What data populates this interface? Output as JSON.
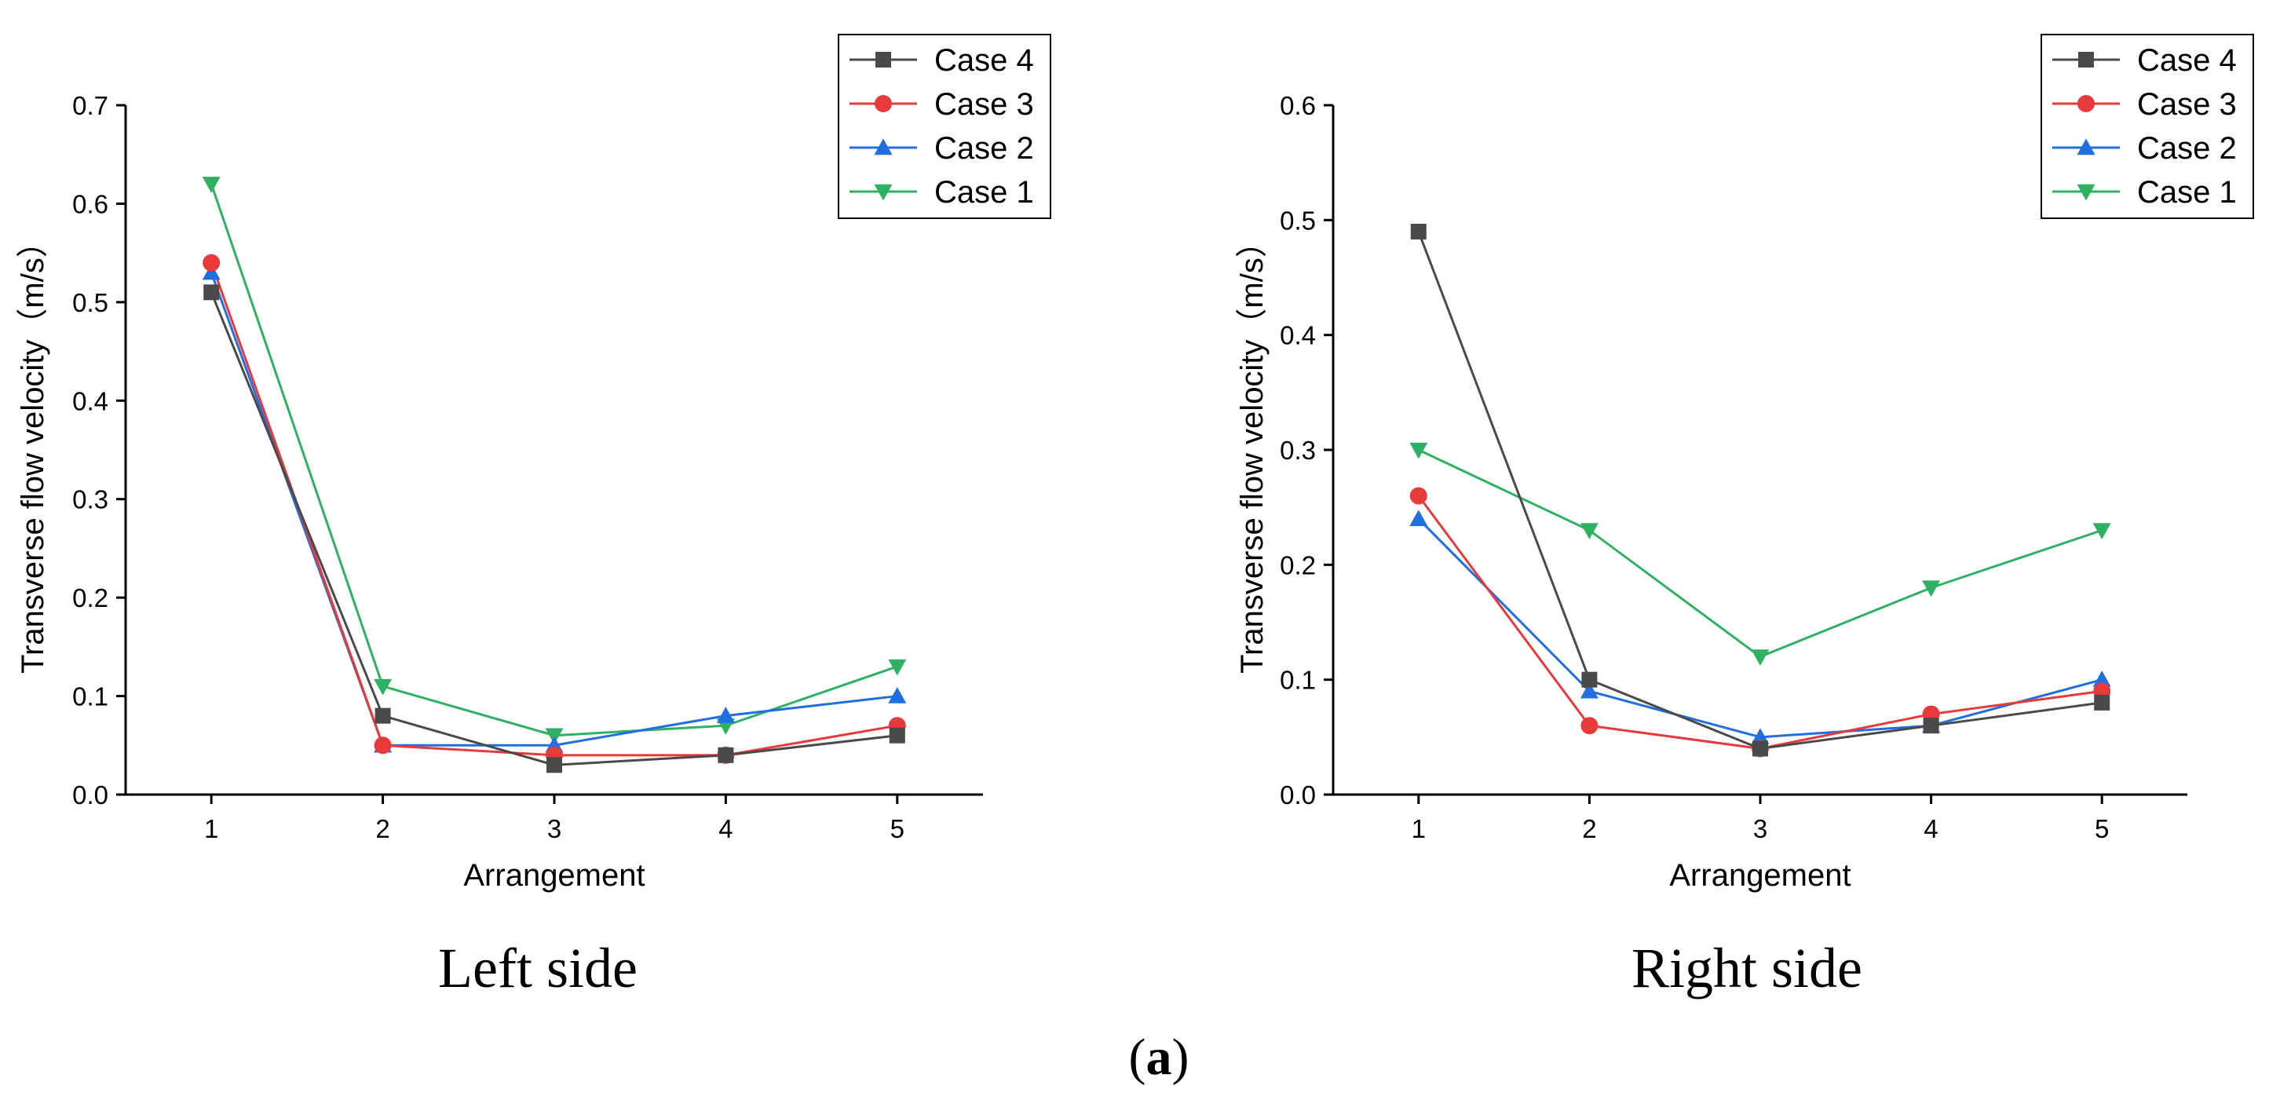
{
  "chart_data": [
    {
      "type": "line",
      "caption": "Left side",
      "xlabel": "Arrangement",
      "ylabel": "Transverse flow velocity（m/s）",
      "x": [
        1,
        2,
        3,
        4,
        5
      ],
      "xlim": [
        0.5,
        5.5
      ],
      "ylim": [
        0,
        0.7
      ],
      "yticks": [
        0.0,
        0.1,
        0.2,
        0.3,
        0.4,
        0.5,
        0.6,
        0.7
      ],
      "ytick_labels": [
        "0.0",
        "0.1",
        "0.2",
        "0.3",
        "0.4",
        "0.5",
        "0.6",
        "0.7"
      ],
      "xtick_labels": [
        "1",
        "2",
        "3",
        "4",
        "5"
      ],
      "legend_position": "top-right",
      "series": [
        {
          "name": "Case 4",
          "color": "#4a4a4a",
          "marker": "square",
          "values": [
            0.51,
            0.08,
            0.03,
            0.04,
            0.06
          ]
        },
        {
          "name": "Case 3",
          "color": "#e8393b",
          "marker": "circle",
          "values": [
            0.54,
            0.05,
            0.04,
            0.04,
            0.07
          ]
        },
        {
          "name": "Case 2",
          "color": "#1f6fe0",
          "marker": "triangle-up",
          "values": [
            0.53,
            0.05,
            0.05,
            0.08,
            0.1
          ]
        },
        {
          "name": "Case 1",
          "color": "#2fb164",
          "marker": "triangle-down",
          "values": [
            0.62,
            0.11,
            0.06,
            0.07,
            0.13
          ]
        }
      ]
    },
    {
      "type": "line",
      "caption": "Right side",
      "xlabel": "Arrangement",
      "ylabel": "Transverse flow velocity（m/s）",
      "x": [
        1,
        2,
        3,
        4,
        5
      ],
      "xlim": [
        0.5,
        5.5
      ],
      "ylim": [
        0,
        0.6
      ],
      "yticks": [
        0.0,
        0.1,
        0.2,
        0.3,
        0.4,
        0.5,
        0.6
      ],
      "ytick_labels": [
        "0.0",
        "0.1",
        "0.2",
        "0.3",
        "0.4",
        "0.5",
        "0.6"
      ],
      "xtick_labels": [
        "1",
        "2",
        "3",
        "4",
        "5"
      ],
      "legend_position": "top-right",
      "series": [
        {
          "name": "Case 4",
          "color": "#4a4a4a",
          "marker": "square",
          "values": [
            0.49,
            0.1,
            0.04,
            0.06,
            0.08
          ]
        },
        {
          "name": "Case 3",
          "color": "#e8393b",
          "marker": "circle",
          "values": [
            0.26,
            0.06,
            0.04,
            0.07,
            0.09
          ]
        },
        {
          "name": "Case 2",
          "color": "#1f6fe0",
          "marker": "triangle-up",
          "values": [
            0.24,
            0.09,
            0.05,
            0.06,
            0.1
          ]
        },
        {
          "name": "Case 1",
          "color": "#2fb164",
          "marker": "triangle-down",
          "values": [
            0.3,
            0.23,
            0.12,
            0.18,
            0.23
          ]
        }
      ]
    }
  ],
  "figure_label_prefix": "(",
  "figure_label_letter": "a",
  "figure_label_suffix": ")"
}
